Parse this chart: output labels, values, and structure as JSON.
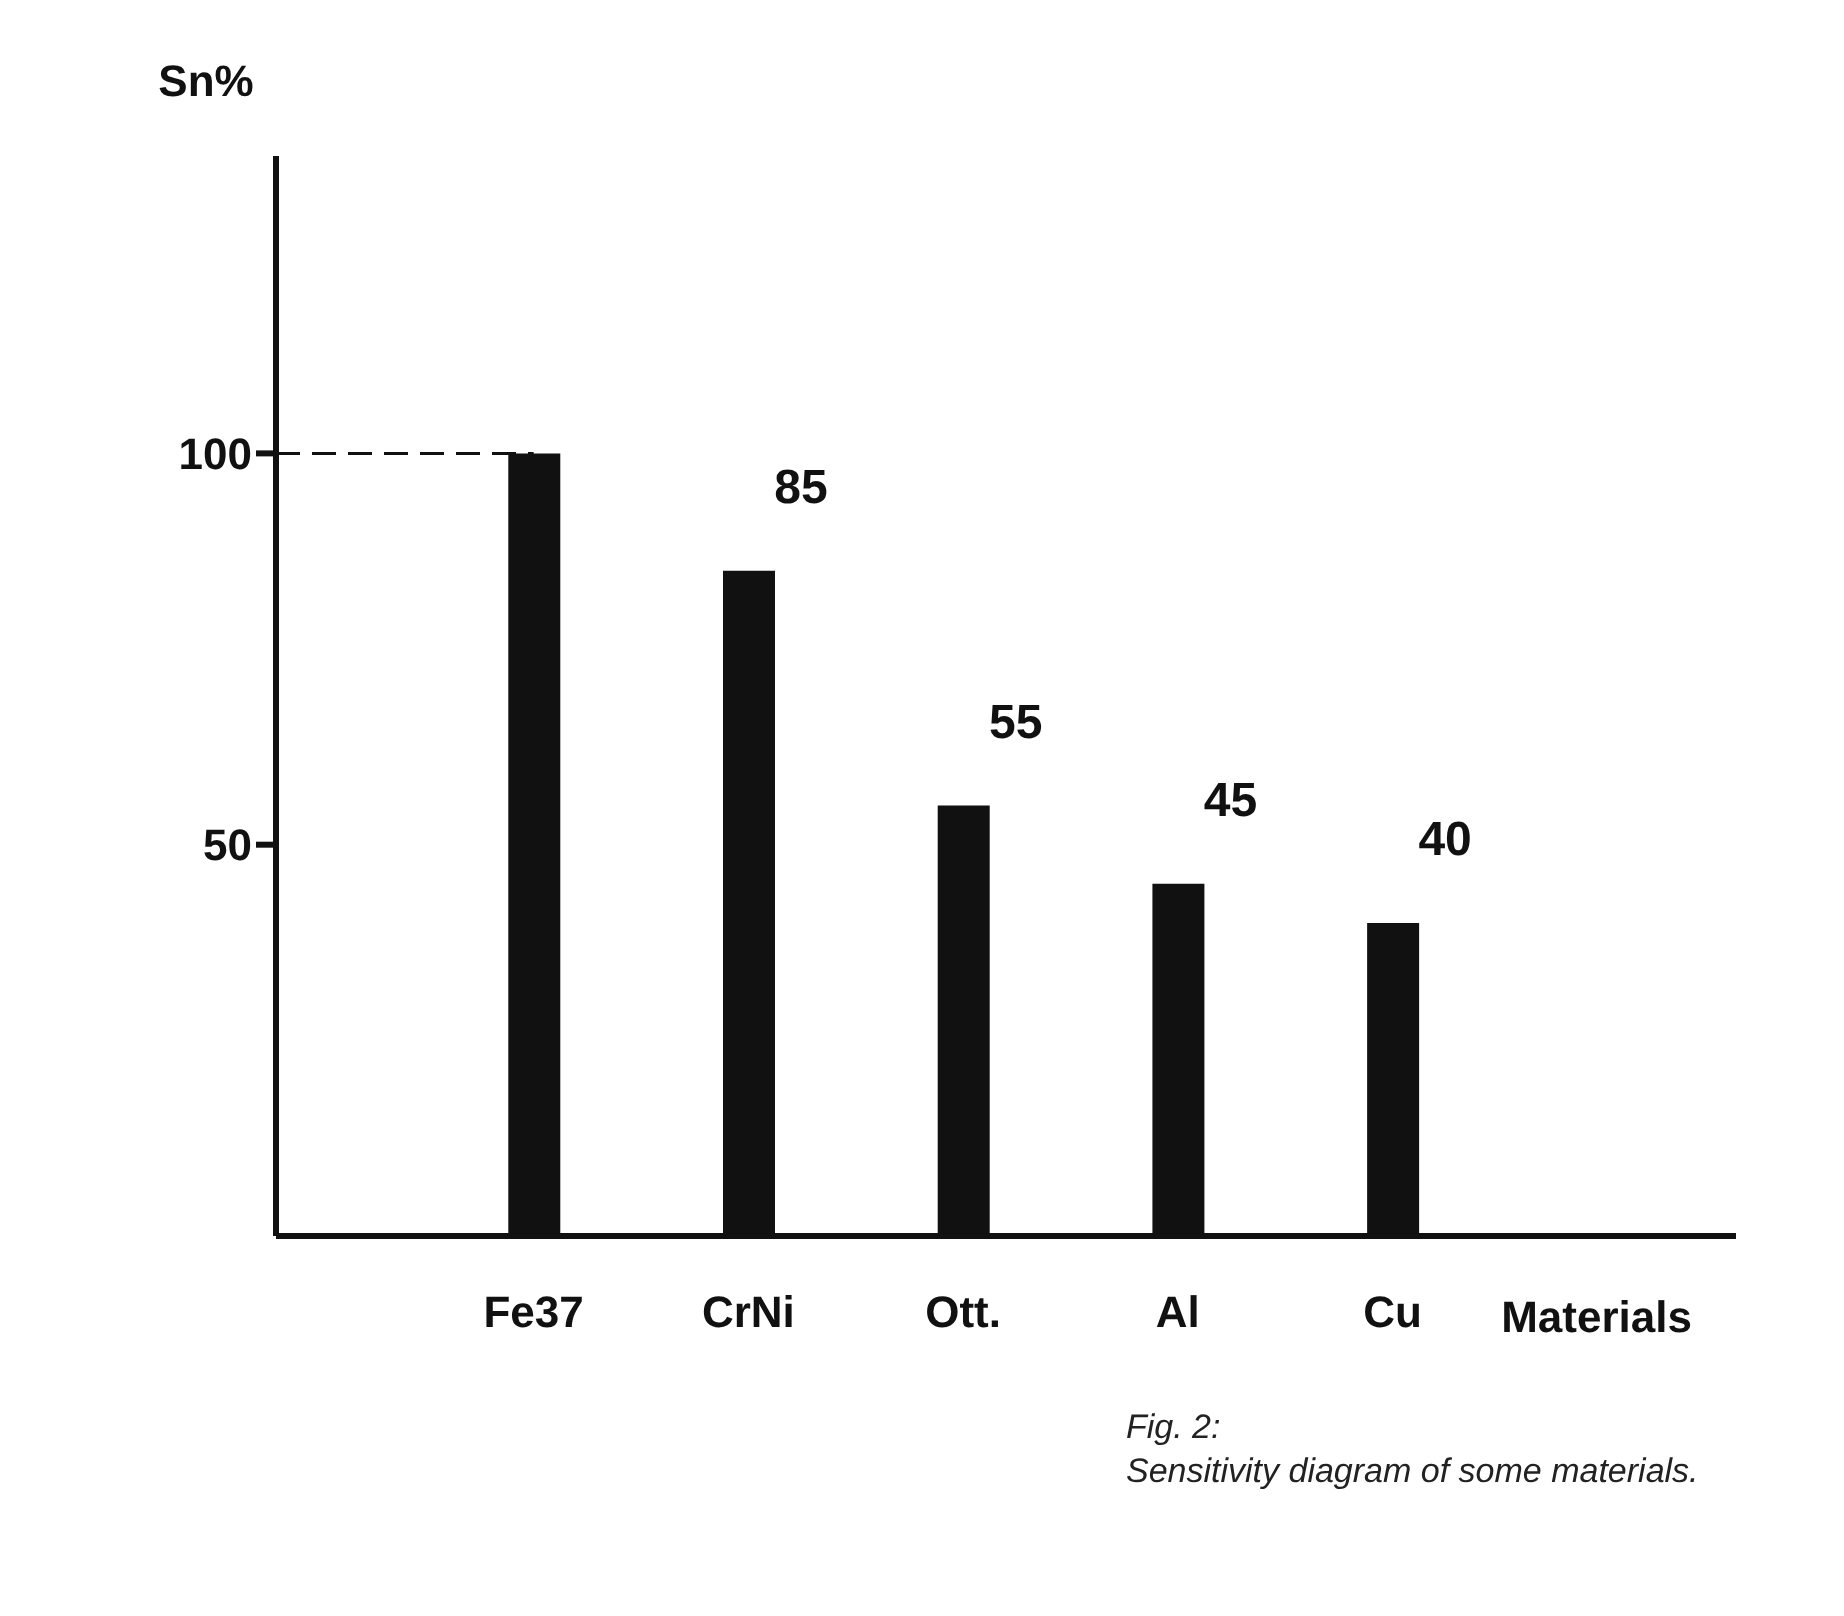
{
  "chart_data": {
    "type": "bar",
    "xlabel": "Materials",
    "ylabel": "Sn%",
    "categories": [
      "Fe37",
      "CrNi",
      "Ott.",
      "Al",
      "Cu"
    ],
    "values": [
      100,
      85,
      55,
      45,
      40
    ],
    "value_labels": [
      null,
      "85",
      "55",
      "45",
      "40"
    ],
    "color": "#111111",
    "ylim": [
      0,
      138
    ],
    "yticks": [
      50,
      100
    ],
    "ref_lines": [
      {
        "axis": "y",
        "value": 100,
        "line_style": "dashed",
        "color": "#111111"
      }
    ],
    "annotations": [
      "Fig. 2:",
      "Sensitivity diagram of some materials."
    ],
    "grid": false
  }
}
